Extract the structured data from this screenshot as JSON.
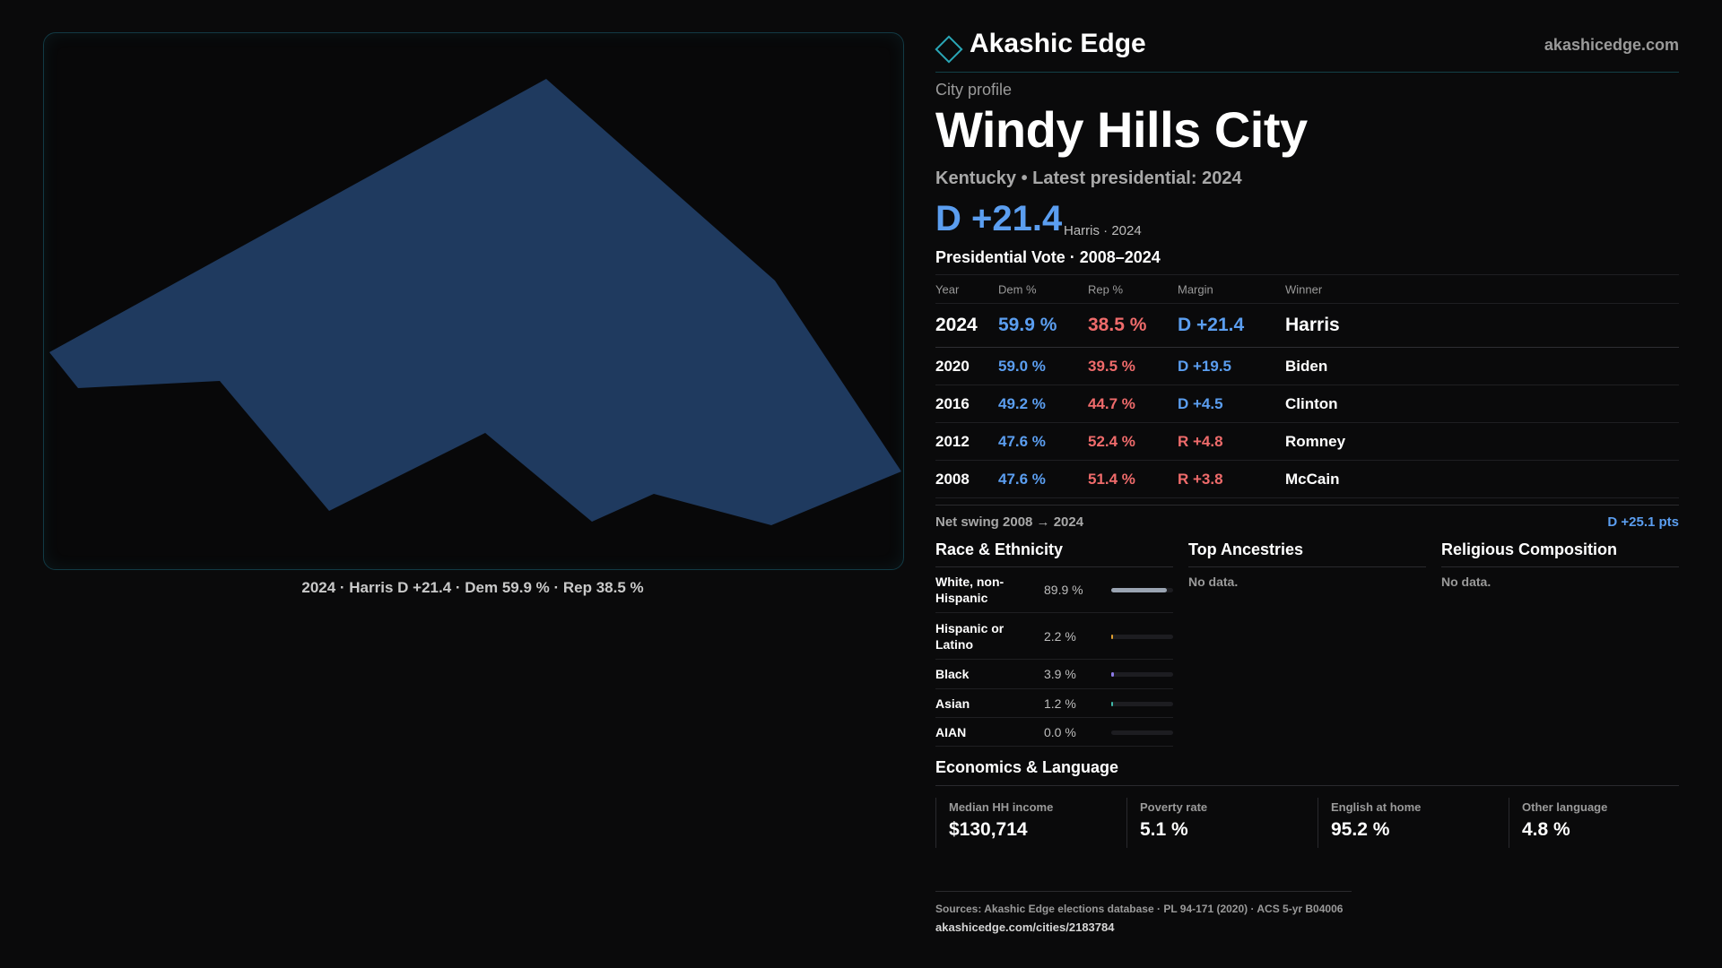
{
  "map": {
    "caption": "2024 · Harris D +21.4 · Dem 59.9 % · Rep 38.5 %",
    "fill_color": "#1f3a5f"
  },
  "brand": {
    "name": "Akashic Edge",
    "site": "akashicedge.com",
    "icon": "diamond-logo-icon"
  },
  "profile": {
    "eyebrow": "City profile",
    "city": "Windy Hills City",
    "subtitle": "Kentucky • Latest presidential: 2024",
    "headline_margin": "D +21.4",
    "headline_note": "Harris · 2024"
  },
  "vote": {
    "title": "Presidential Vote · 2008–2024",
    "headers": [
      "Year",
      "Dem %",
      "Rep %",
      "Margin",
      "Winner"
    ],
    "rows": [
      {
        "year": "2024",
        "dem": "59.9 %",
        "rep": "38.5 %",
        "margin": "D +21.4",
        "party": "dem",
        "winner": "Harris"
      },
      {
        "year": "2020",
        "dem": "59.0 %",
        "rep": "39.5 %",
        "margin": "D +19.5",
        "party": "dem",
        "winner": "Biden"
      },
      {
        "year": "2016",
        "dem": "49.2 %",
        "rep": "44.7 %",
        "margin": "D +4.5",
        "party": "dem",
        "winner": "Clinton"
      },
      {
        "year": "2012",
        "dem": "47.6 %",
        "rep": "52.4 %",
        "margin": "R +4.8",
        "party": "rep",
        "winner": "Romney"
      },
      {
        "year": "2008",
        "dem": "47.6 %",
        "rep": "51.4 %",
        "margin": "R +3.8",
        "party": "rep",
        "winner": "McCain"
      }
    ],
    "swing_label": "Net swing 2008 → 2024",
    "swing_value": "D +25.1 pts"
  },
  "race": {
    "title": "Race & Ethnicity",
    "rows": [
      {
        "label": "White, non-Hispanic",
        "value": "89.9 %",
        "fraction": 0.899,
        "color": "#9aa4b2"
      },
      {
        "label": "Hispanic or Latino",
        "value": "2.2 %",
        "fraction": 0.022,
        "color": "#e0a030"
      },
      {
        "label": "Black",
        "value": "3.9 %",
        "fraction": 0.039,
        "color": "#8c7ae6"
      },
      {
        "label": "Asian",
        "value": "1.2 %",
        "fraction": 0.012,
        "color": "#3fb8a8"
      },
      {
        "label": "AIAN",
        "value": "0.0 %",
        "fraction": 0.0,
        "color": "#c06060"
      }
    ]
  },
  "ancestries": {
    "title": "Top Ancestries",
    "empty": "No data."
  },
  "religion": {
    "title": "Religious Composition",
    "empty": "No data."
  },
  "economics": {
    "title": "Economics & Language",
    "stats": [
      {
        "label": "Median HH income",
        "value": "$130,714"
      },
      {
        "label": "Poverty rate",
        "value": "5.1 %"
      },
      {
        "label": "English at home",
        "value": "95.2 %"
      },
      {
        "label": "Other language",
        "value": "4.8 %"
      }
    ]
  },
  "footer": {
    "sources": "Sources: Akashic Edge elections database · PL 94-171 (2020) · ACS 5-yr B04006",
    "url": "akashicedge.com/cities/2183784"
  }
}
